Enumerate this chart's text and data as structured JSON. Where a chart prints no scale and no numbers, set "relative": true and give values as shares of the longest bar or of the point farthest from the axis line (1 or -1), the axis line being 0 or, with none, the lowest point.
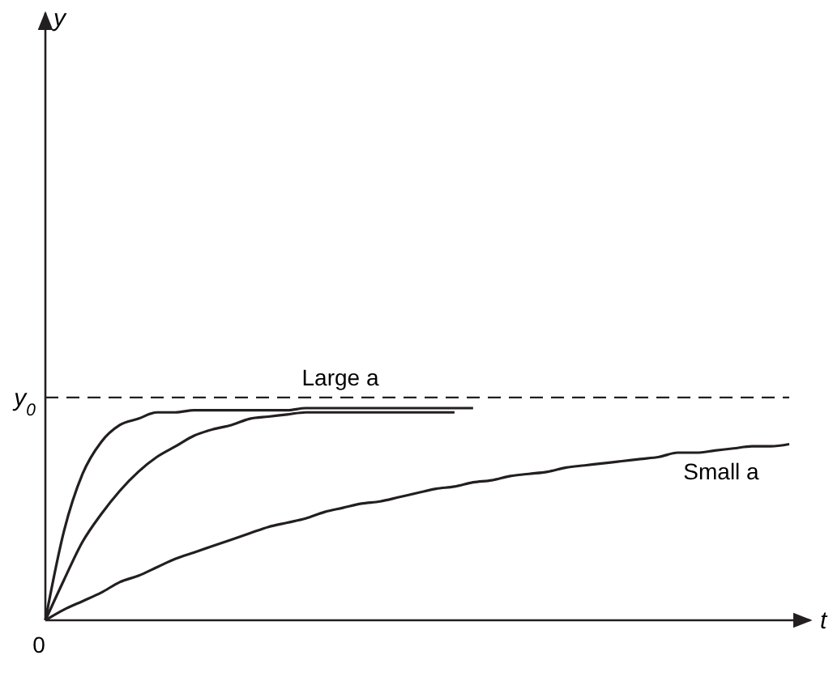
{
  "chart_data": {
    "type": "line",
    "relative": true,
    "xlabel": "t",
    "annotations": [
      "0",
      "Large a",
      "Small a",
      "y"
    ],
    "categories": [
      null,
      null,
      null,
      null,
      null,
      null,
      null,
      null,
      null,
      null,
      null,
      null,
      null,
      null,
      null,
      null,
      null,
      null,
      null,
      null,
      null,
      null,
      null,
      null,
      null,
      null,
      null,
      null,
      null,
      null,
      null,
      null,
      null,
      null,
      null,
      null,
      null,
      null,
      null,
      null,
      null
    ],
    "series": [
      {
        "color": "#231f20",
        "values": [
          0,
          0.42,
          0.69,
          0.84,
          0.92,
          0.95,
          0.98,
          0.98,
          0.99,
          0.99,
          0.99,
          0.99,
          0.99,
          0.99,
          1,
          1,
          1,
          1,
          1,
          1,
          1,
          1,
          1,
          1,
          null,
          null,
          null,
          null,
          null,
          null,
          null,
          null,
          null,
          null,
          null,
          null,
          null,
          null,
          null,
          null,
          null
        ]
      },
      {
        "color": "#231f20",
        "values": [
          0,
          0.19,
          0.37,
          0.5,
          0.61,
          0.7,
          0.77,
          0.82,
          0.87,
          0.9,
          0.92,
          0.95,
          0.96,
          0.97,
          0.98,
          0.98,
          0.98,
          0.98,
          0.98,
          0.98,
          0.98,
          0.98,
          0.98,
          null,
          null,
          null,
          null,
          null,
          null,
          null,
          null,
          null,
          null,
          null,
          null,
          null,
          null,
          null,
          null,
          null,
          null
        ]
      },
      {
        "color": "#231f20",
        "values": [
          0,
          0.05,
          0.09,
          0.13,
          0.18,
          0.21,
          0.25,
          0.29,
          0.32,
          0.35,
          0.38,
          0.41,
          0.44,
          0.46,
          0.48,
          0.51,
          0.53,
          0.55,
          0.56,
          0.58,
          0.6,
          0.62,
          0.63,
          0.65,
          0.66,
          0.68,
          0.69,
          0.7,
          0.72,
          0.73,
          0.74,
          0.75,
          0.76,
          0.77,
          0.79,
          0.79,
          0.8,
          0.81,
          0.82,
          0.82,
          0.83
        ]
      }
    ],
    "ref_lines": [
      {
        "axis": "y",
        "value": 1.05,
        "label": "y$_{0}$",
        "line_style": "dashed"
      }
    ],
    "marker": "none",
    "line_style": "solid",
    "grid": false
  }
}
